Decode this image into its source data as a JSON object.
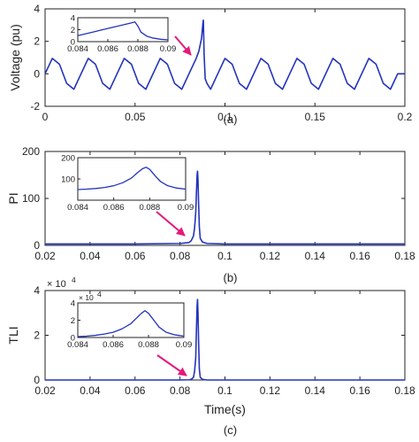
{
  "colors": {
    "line": "#2233bb",
    "arrow": "#e6197a",
    "axis": "#222222"
  },
  "chart_data": [
    {
      "id": "a",
      "type": "line",
      "caption": "(a)",
      "ylabel": "Voltage (pu)",
      "xlabel": "",
      "xlim": [
        0,
        0.2
      ],
      "ylim": [
        -2,
        4
      ],
      "xticks": [
        0,
        0.05,
        0.1,
        0.15,
        0.2
      ],
      "xtick_labels": [
        "0",
        "0.05",
        "0.1",
        "0.15",
        "0.2"
      ],
      "yticks": [
        -2,
        0,
        2,
        4
      ],
      "ytick_labels": [
        "-2",
        "0",
        "2",
        "4"
      ],
      "series": [
        {
          "x": [
            0,
            0.004,
            0.008,
            0.012,
            0.016,
            0.02,
            0.024,
            0.028,
            0.032,
            0.036,
            0.04,
            0.044,
            0.048,
            0.052,
            0.056,
            0.06,
            0.064,
            0.068,
            0.072,
            0.076,
            0.08,
            0.084,
            0.0855,
            0.087,
            0.0878,
            0.088,
            0.0884,
            0.089,
            0.09,
            0.092,
            0.096,
            0.1,
            0.104,
            0.108,
            0.112,
            0.116,
            0.12,
            0.124,
            0.128,
            0.132,
            0.136,
            0.14,
            0.144,
            0.148,
            0.152,
            0.156,
            0.16,
            0.164,
            0.168,
            0.172,
            0.176,
            0.18,
            0.184,
            0.188,
            0.192,
            0.196,
            0.2
          ],
          "y": [
            0,
            0.95,
            0.59,
            -0.59,
            -0.95,
            0,
            0.95,
            0.59,
            -0.59,
            -0.95,
            0,
            0.95,
            0.59,
            -0.59,
            -0.95,
            0,
            0.95,
            0.59,
            -0.59,
            -0.95,
            0,
            0.95,
            1.4,
            2.2,
            3.2,
            3.3,
            1.2,
            -0.3,
            -0.59,
            -0.95,
            0,
            0.95,
            0.59,
            -0.59,
            -0.95,
            0,
            0.95,
            0.59,
            -0.59,
            -0.95,
            0,
            0.95,
            0.59,
            -0.59,
            -0.95,
            0,
            0.95,
            0.59,
            -0.59,
            -0.95,
            0,
            0.95,
            0.59,
            -0.59,
            -0.95,
            0,
            0
          ]
        }
      ],
      "inset": {
        "xlim": [
          0.084,
          0.09
        ],
        "ylim": [
          0,
          4
        ],
        "xticks": [
          0.084,
          0.086,
          0.088,
          0.09
        ],
        "xtick_labels": [
          "0.084",
          "0.086",
          "0.088",
          "0.09"
        ],
        "yticks": [
          0,
          2,
          4
        ],
        "ytick_labels": [
          "0",
          "2",
          "4"
        ],
        "x": [
          0.084,
          0.0845,
          0.085,
          0.0855,
          0.086,
          0.0865,
          0.087,
          0.0875,
          0.0878,
          0.088,
          0.0882,
          0.0886,
          0.089,
          0.0895,
          0.09
        ],
        "y": [
          1.0,
          1.3,
          1.6,
          1.9,
          2.2,
          2.5,
          2.8,
          3.1,
          3.3,
          2.6,
          1.6,
          0.9,
          0.6,
          0.4,
          0.3
        ]
      }
    },
    {
      "id": "b",
      "type": "line",
      "caption": "(b)",
      "ylabel": "PI",
      "xlabel": "",
      "xlim": [
        0.02,
        0.18
      ],
      "ylim": [
        0,
        200
      ],
      "xticks": [
        0.02,
        0.04,
        0.06,
        0.08,
        0.1,
        0.12,
        0.14,
        0.16,
        0.18
      ],
      "xtick_labels": [
        "0.02",
        "0.04",
        "0.06",
        "0.08",
        "0.1",
        "0.12",
        "0.14",
        "0.16",
        "0.18"
      ],
      "yticks": [
        0,
        100,
        200
      ],
      "ytick_labels": [
        "0",
        "100",
        "200"
      ],
      "series": [
        {
          "x": [
            0.02,
            0.06,
            0.08,
            0.084,
            0.085,
            0.086,
            0.0865,
            0.087,
            0.0873,
            0.0876,
            0.0878,
            0.088,
            0.0883,
            0.0886,
            0.089,
            0.09,
            0.092,
            0.1,
            0.14,
            0.18
          ],
          "y": [
            3,
            3,
            4,
            6,
            10,
            20,
            38,
            70,
            110,
            150,
            158,
            140,
            85,
            40,
            15,
            7,
            4,
            3,
            3,
            3
          ]
        }
      ],
      "inset": {
        "xlim": [
          0.084,
          0.09
        ],
        "ylim": [
          0,
          200
        ],
        "xticks": [
          0.084,
          0.086,
          0.088,
          0.09
        ],
        "xtick_labels": [
          "0.084",
          "0.086",
          "0.088",
          "0.09"
        ],
        "yticks": [
          100,
          200
        ],
        "ytick_labels": [
          "100",
          "200"
        ],
        "x": [
          0.084,
          0.0845,
          0.085,
          0.0855,
          0.086,
          0.0865,
          0.087,
          0.0873,
          0.0876,
          0.0878,
          0.088,
          0.0883,
          0.0886,
          0.089,
          0.0895,
          0.09
        ],
        "y": [
          50,
          52,
          55,
          60,
          68,
          82,
          105,
          128,
          148,
          155,
          145,
          115,
          88,
          68,
          57,
          52
        ]
      }
    },
    {
      "id": "c",
      "type": "line",
      "caption": "(c)",
      "ylabel": "TLI",
      "xlabel": "Time(s)",
      "xlim": [
        0.02,
        0.18
      ],
      "ylim": [
        0,
        40000
      ],
      "exponent_label": "× 10",
      "exponent_power": "4",
      "xticks": [
        0.02,
        0.04,
        0.06,
        0.08,
        0.1,
        0.12,
        0.14,
        0.16,
        0.18
      ],
      "xtick_labels": [
        "0.02",
        "0.04",
        "0.06",
        "0.08",
        "0.1",
        "0.12",
        "0.14",
        "0.16",
        "0.18"
      ],
      "yticks": [
        0,
        20000,
        40000
      ],
      "ytick_labels": [
        "0",
        "2",
        "4"
      ],
      "series": [
        {
          "x": [
            0.02,
            0.06,
            0.08,
            0.084,
            0.085,
            0.086,
            0.0865,
            0.087,
            0.0873,
            0.0876,
            0.0878,
            0.088,
            0.0883,
            0.0886,
            0.089,
            0.09,
            0.092,
            0.1,
            0.14,
            0.18
          ],
          "y": [
            0,
            0,
            0,
            100,
            300,
            1200,
            4000,
            10000,
            22000,
            33000,
            36000,
            30000,
            16000,
            5000,
            1200,
            300,
            0,
            0,
            0,
            0
          ]
        }
      ],
      "inset": {
        "xlim": [
          0.084,
          0.09
        ],
        "ylim": [
          0,
          40000
        ],
        "exponent_label": "× 10",
        "exponent_power": "4",
        "xticks": [
          0.084,
          0.086,
          0.088,
          0.09
        ],
        "xtick_labels": [
          "0.084",
          "0.086",
          "0.088",
          "0.09"
        ],
        "yticks": [
          0,
          20000,
          40000
        ],
        "ytick_labels": [
          "0",
          "2",
          "4"
        ],
        "x": [
          0.084,
          0.0845,
          0.085,
          0.0855,
          0.086,
          0.0865,
          0.087,
          0.0873,
          0.0876,
          0.0878,
          0.088,
          0.0883,
          0.0886,
          0.089,
          0.0895,
          0.09
        ],
        "y": [
          1000,
          1500,
          2500,
          4000,
          6000,
          10000,
          16000,
          22000,
          28000,
          31000,
          28000,
          20000,
          12000,
          6000,
          3000,
          1500
        ]
      }
    }
  ]
}
